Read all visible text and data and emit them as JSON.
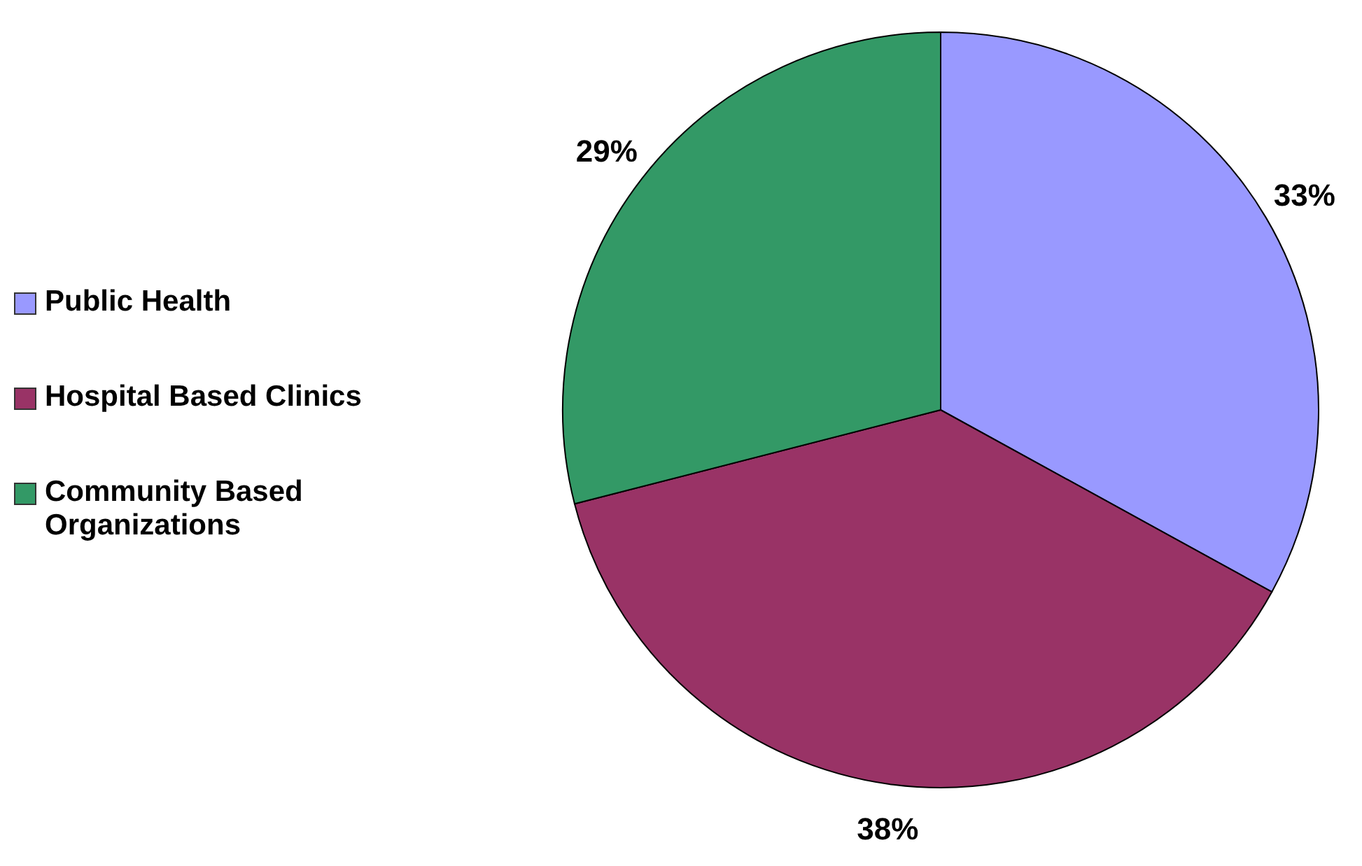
{
  "chart_data": {
    "type": "pie",
    "categories": [
      "Public Health",
      "Hospital Based Clinics",
      "Community Based Organizations"
    ],
    "values": [
      33,
      38,
      29
    ],
    "colors": [
      "#9999ff",
      "#993366",
      "#339966"
    ],
    "value_labels": [
      "33%",
      "38%",
      "29%"
    ],
    "legend": "left"
  }
}
